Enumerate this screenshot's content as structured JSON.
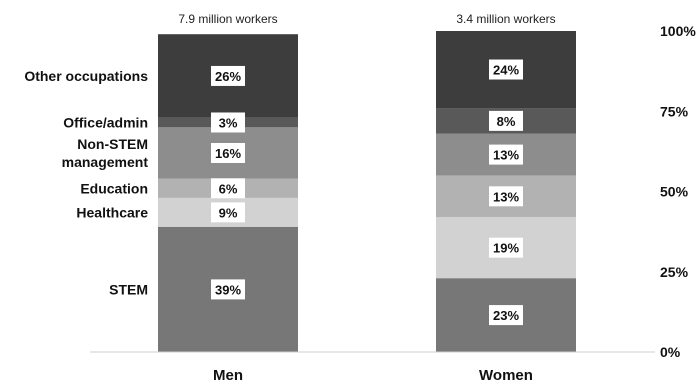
{
  "chart_data": {
    "type": "bar",
    "stacked": true,
    "categories": [
      "Men",
      "Women"
    ],
    "totals": [
      "7.9 million workers",
      "3.4 million workers"
    ],
    "series": [
      {
        "name": "STEM",
        "values": [
          39,
          23
        ],
        "labels": [
          "39%",
          "23%"
        ],
        "color": "#777777"
      },
      {
        "name": "Healthcare",
        "values": [
          9,
          19
        ],
        "labels": [
          "9%",
          "19%"
        ],
        "color": "#d2d2d2"
      },
      {
        "name": "Education",
        "values": [
          6,
          13
        ],
        "labels": [
          "6%",
          "13%"
        ],
        "color": "#b2b2b2"
      },
      {
        "name": "Non-STEM management",
        "values": [
          16,
          13
        ],
        "labels": [
          "16%",
          "13%"
        ],
        "color": "#8d8d8d"
      },
      {
        "name": "Office/admin",
        "values": [
          3,
          8
        ],
        "labels": [
          "3%",
          "8%"
        ],
        "color": "#595959"
      },
      {
        "name": "Other occupations",
        "values": [
          26,
          24
        ],
        "labels": [
          "26%",
          "24%"
        ],
        "color": "#3d3d3d"
      }
    ],
    "yticks": [
      "0%",
      "25%",
      "50%",
      "75%",
      "100%"
    ],
    "ylim": [
      0,
      100
    ],
    "legend": "category labels at left of first bar",
    "grid": false
  }
}
